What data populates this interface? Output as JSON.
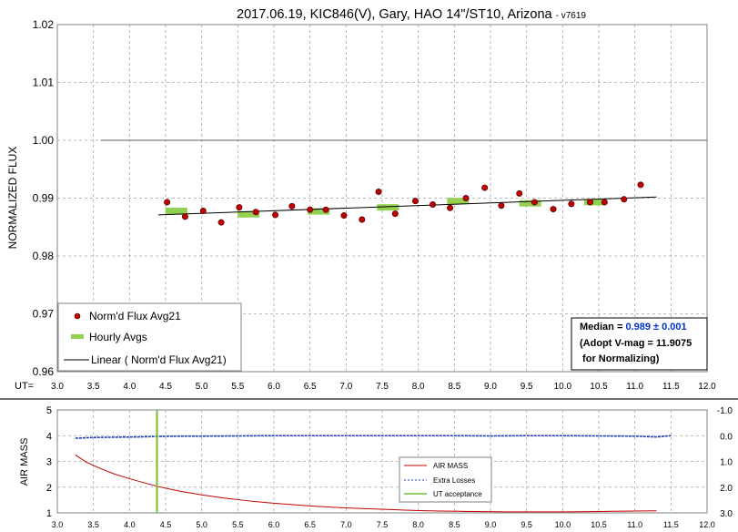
{
  "title": "2017.06.19, KIC846(V), Gary, HAO 14\"/ST10, Arizona",
  "version_tag": "- v7619",
  "colors": {
    "data_point": "#c00000",
    "hourly_avg": "#92d050",
    "trend_line": "#000000",
    "flat_line": "#808080",
    "median_value": "#0033cc",
    "air_mass": "#c00000",
    "extra_losses": "#1f3fbf",
    "ut_acceptance": "#70c030"
  },
  "chart_data": [
    {
      "type": "scatter",
      "title": "2017.06.19, KIC846(V), Gary, HAO 14\"/ST10, Arizona - v7619",
      "ylabel": "NORMALIZED FLUX",
      "xlabel": "",
      "x_axis_prefix": "UT=",
      "xlim": [
        3.0,
        12.0
      ],
      "ylim": [
        0.96,
        1.02
      ],
      "x_ticks": [
        "3.0",
        "3.5",
        "4.0",
        "4.5",
        "5.0",
        "5.5",
        "6.0",
        "6.5",
        "7.0",
        "7.5",
        "8.0",
        "8.5",
        "9.0",
        "9.5",
        "10.0",
        "10.5",
        "11.0",
        "11.5",
        "12.0"
      ],
      "y_ticks": [
        "0.96",
        "0.97",
        "0.98",
        "0.99",
        "1.00",
        "1.01",
        "1.02"
      ],
      "grid": true,
      "legend_position": "bottom-left",
      "series": [
        {
          "name": "Norm'd Flux Avg21",
          "kind": "points",
          "x": [
            4.52,
            4.77,
            5.02,
            5.27,
            5.52,
            5.75,
            6.02,
            6.25,
            6.5,
            6.72,
            6.97,
            7.22,
            7.45,
            7.68,
            7.96,
            8.2,
            8.44,
            8.66,
            8.92,
            9.15,
            9.4,
            9.61,
            9.87,
            10.12,
            10.38,
            10.58,
            10.85,
            11.08
          ],
          "y": [
            0.9893,
            0.9868,
            0.9878,
            0.9858,
            0.9884,
            0.9876,
            0.9871,
            0.9886,
            0.988,
            0.988,
            0.987,
            0.9863,
            0.9911,
            0.9873,
            0.9895,
            0.9889,
            0.9883,
            0.99,
            0.9918,
            0.9887,
            0.9908,
            0.9893,
            0.9881,
            0.989,
            0.9893,
            0.9893,
            0.9898,
            0.9923
          ]
        },
        {
          "name": "Hourly Avgs",
          "kind": "dashes",
          "x": [
            4.65,
            5.65,
            6.62,
            7.58,
            8.55,
            9.55,
            10.45
          ],
          "y": [
            0.9878,
            0.9872,
            0.9877,
            0.9884,
            0.9895,
            0.9891,
            0.9893
          ]
        },
        {
          "name": "Linear ( Norm'd Flux Avg21)",
          "kind": "line",
          "x": [
            4.4,
            11.3
          ],
          "y": [
            0.9871,
            0.9902
          ]
        },
        {
          "name": "",
          "kind": "flat",
          "x": [
            3.6,
            12.0
          ],
          "y": [
            1.0,
            1.0
          ]
        }
      ],
      "annotation": {
        "median_label": "Median = ",
        "median_value": "0.989 ± 0.001",
        "adopt_text": "(Adopt V-mag = 11.9075",
        "normalizing_text": " for Normalizing)"
      }
    },
    {
      "type": "line",
      "ylabel": "AIR MASS",
      "xlim": [
        3.0,
        12.0
      ],
      "ylim": [
        1,
        5
      ],
      "y2lim": [
        3.0,
        -1.0
      ],
      "x_ticks": [
        "3.0",
        "3.5",
        "4.0",
        "4.5",
        "5.0",
        "5.5",
        "6.0",
        "6.5",
        "7.0",
        "7.5",
        "8.0",
        "8.5",
        "9.0",
        "9.5",
        "10.0",
        "10.5",
        "11.0",
        "11.5",
        "12.0"
      ],
      "y_ticks": [
        "1",
        "2",
        "3",
        "4",
        "5"
      ],
      "y2_ticks": [
        "-1.0",
        "0.0",
        "1.0",
        "2.0",
        "3.0"
      ],
      "grid": true,
      "legend_position": "bottom-right",
      "series": [
        {
          "name": "AIR MASS",
          "x": [
            3.25,
            3.4,
            3.6,
            3.8,
            4.0,
            4.2,
            4.4,
            4.7,
            5.0,
            5.3,
            5.6,
            5.9,
            6.2,
            6.5,
            6.8,
            7.1,
            7.4,
            7.7,
            8.0,
            8.3,
            8.6,
            8.9,
            9.2,
            9.5,
            9.8,
            10.1,
            10.4,
            10.7,
            11.0,
            11.3
          ],
          "y": [
            3.25,
            2.97,
            2.72,
            2.5,
            2.33,
            2.17,
            2.02,
            1.84,
            1.7,
            1.58,
            1.48,
            1.4,
            1.33,
            1.27,
            1.22,
            1.18,
            1.15,
            1.12,
            1.09,
            1.07,
            1.06,
            1.05,
            1.04,
            1.04,
            1.04,
            1.04,
            1.05,
            1.06,
            1.07,
            1.08
          ]
        },
        {
          "name": "Extra Losses",
          "x": [
            3.25,
            3.5,
            3.8,
            4.1,
            4.4,
            4.7,
            5.0,
            5.5,
            6.0,
            6.5,
            7.0,
            7.5,
            8.0,
            8.5,
            9.0,
            9.5,
            10.0,
            10.5,
            11.0,
            11.3,
            11.5
          ],
          "y": [
            0.1,
            0.07,
            0.06,
            0.05,
            0.03,
            0.02,
            0.02,
            0.01,
            0.0,
            0.0,
            0.0,
            0.0,
            0.0,
            0.0,
            0.01,
            0.0,
            0.0,
            0.01,
            0.02,
            0.05,
            0.0
          ]
        },
        {
          "name": "UT acceptance",
          "x": [
            4.38,
            4.38
          ],
          "y": [
            1,
            5
          ]
        }
      ]
    }
  ]
}
